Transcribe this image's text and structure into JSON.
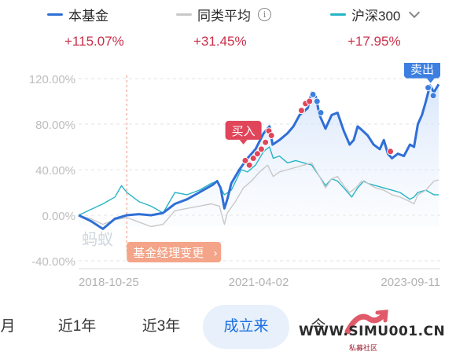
{
  "legend": [
    {
      "name": "本基金",
      "return": "+115.07%",
      "color": "#2f6fd6"
    },
    {
      "name": "同类平均",
      "return": "+31.45%",
      "color": "#c8c8c8"
    },
    {
      "name": "沪深300",
      "return": "+17.95%",
      "color": "#25b4c6"
    }
  ],
  "icons": {
    "info": "info-icon",
    "dropdown": "chevron-down-icon"
  },
  "chart_data": {
    "type": "line",
    "y_ticks": [
      "120.00%",
      "80.00%",
      "40.00%",
      "0.00%",
      "-40.00%"
    ],
    "ylim": [
      -40,
      120
    ],
    "x_tick_labels": [
      "2018-10-25",
      "2021-04-02",
      "2023-09-11"
    ],
    "x_range": [
      "2017-03-01",
      "2024-09-01"
    ],
    "grid": true,
    "series": [
      {
        "name": "本基金",
        "color": "#2f6fd6",
        "points": [
          [
            "2017-03-01",
            0
          ],
          [
            "2017-06-01",
            -5
          ],
          [
            "2017-09-01",
            -12
          ],
          [
            "2017-12-01",
            -3
          ],
          [
            "2018-03-01",
            0
          ],
          [
            "2018-06-01",
            1
          ],
          [
            "2018-09-01",
            0
          ],
          [
            "2018-12-01",
            2
          ],
          [
            "2019-03-01",
            10
          ],
          [
            "2019-06-01",
            14
          ],
          [
            "2019-09-01",
            20
          ],
          [
            "2019-11-01",
            24
          ],
          [
            "2019-12-15",
            27
          ],
          [
            "2020-01-15",
            30
          ],
          [
            "2020-02-10",
            24
          ],
          [
            "2020-03-10",
            6
          ],
          [
            "2020-04-01",
            14
          ],
          [
            "2020-05-01",
            28
          ],
          [
            "2020-07-01",
            40
          ],
          [
            "2020-09-01",
            50
          ],
          [
            "2020-11-01",
            58
          ],
          [
            "2021-01-01",
            72
          ],
          [
            "2021-02-15",
            78
          ],
          [
            "2021-03-10",
            62
          ],
          [
            "2021-05-01",
            66
          ],
          [
            "2021-07-01",
            72
          ],
          [
            "2021-08-15",
            78
          ],
          [
            "2021-10-01",
            88
          ],
          [
            "2021-12-01",
            94
          ],
          [
            "2022-01-01",
            108
          ],
          [
            "2022-02-01",
            104
          ],
          [
            "2022-03-01",
            88
          ],
          [
            "2022-04-15",
            76
          ],
          [
            "2022-06-01",
            88
          ],
          [
            "2022-07-15",
            90
          ],
          [
            "2022-09-01",
            74
          ],
          [
            "2022-10-15",
            62
          ],
          [
            "2022-11-15",
            66
          ],
          [
            "2022-12-15",
            78
          ],
          [
            "2023-01-15",
            75
          ],
          [
            "2023-03-01",
            70
          ],
          [
            "2023-04-15",
            62
          ],
          [
            "2023-06-01",
            58
          ],
          [
            "2023-07-01",
            66
          ],
          [
            "2023-08-01",
            54
          ],
          [
            "2023-09-01",
            50
          ],
          [
            "2023-10-15",
            54
          ],
          [
            "2023-12-01",
            52
          ],
          [
            "2024-01-15",
            62
          ],
          [
            "2024-02-15",
            60
          ],
          [
            "2024-03-15",
            80
          ],
          [
            "2024-04-15",
            88
          ],
          [
            "2024-05-15",
            100
          ],
          [
            "2024-06-15",
            114
          ],
          [
            "2024-07-15",
            108
          ],
          [
            "2024-08-20",
            115
          ]
        ]
      },
      {
        "name": "同类平均",
        "color": "#c8c8c8",
        "points": [
          [
            "2017-03-01",
            0
          ],
          [
            "2017-06-01",
            -3
          ],
          [
            "2017-09-01",
            -8
          ],
          [
            "2017-12-01",
            -4
          ],
          [
            "2018-03-01",
            -2
          ],
          [
            "2018-06-01",
            -6
          ],
          [
            "2018-09-01",
            -10
          ],
          [
            "2018-12-01",
            -8
          ],
          [
            "2019-03-01",
            4
          ],
          [
            "2019-06-01",
            6
          ],
          [
            "2019-09-01",
            8
          ],
          [
            "2019-12-01",
            10
          ],
          [
            "2020-02-01",
            8
          ],
          [
            "2020-03-10",
            -8
          ],
          [
            "2020-04-01",
            2
          ],
          [
            "2020-06-01",
            12
          ],
          [
            "2020-08-01",
            24
          ],
          [
            "2020-10-01",
            30
          ],
          [
            "2020-12-01",
            38
          ],
          [
            "2021-02-01",
            44
          ],
          [
            "2021-03-15",
            34
          ],
          [
            "2021-05-01",
            38
          ],
          [
            "2021-07-01",
            40
          ],
          [
            "2021-09-01",
            42
          ],
          [
            "2021-11-01",
            44
          ],
          [
            "2022-01-01",
            46
          ],
          [
            "2022-03-01",
            34
          ],
          [
            "2022-04-15",
            24
          ],
          [
            "2022-06-01",
            32
          ],
          [
            "2022-07-15",
            34
          ],
          [
            "2022-09-01",
            26
          ],
          [
            "2022-10-15",
            20
          ],
          [
            "2022-12-01",
            24
          ],
          [
            "2023-01-15",
            30
          ],
          [
            "2023-03-01",
            28
          ],
          [
            "2023-05-01",
            24
          ],
          [
            "2023-07-01",
            22
          ],
          [
            "2023-09-01",
            18
          ],
          [
            "2023-11-01",
            16
          ],
          [
            "2024-01-15",
            12
          ],
          [
            "2024-02-15",
            10
          ],
          [
            "2024-03-15",
            18
          ],
          [
            "2024-05-15",
            22
          ],
          [
            "2024-07-15",
            30
          ],
          [
            "2024-08-20",
            31
          ]
        ]
      },
      {
        "name": "沪深300",
        "color": "#25b4c6",
        "points": [
          [
            "2017-03-01",
            0
          ],
          [
            "2017-06-01",
            5
          ],
          [
            "2017-09-01",
            10
          ],
          [
            "2017-12-01",
            16
          ],
          [
            "2018-01-20",
            26
          ],
          [
            "2018-03-01",
            20
          ],
          [
            "2018-06-01",
            12
          ],
          [
            "2018-09-01",
            8
          ],
          [
            "2018-12-01",
            2
          ],
          [
            "2019-03-01",
            20
          ],
          [
            "2019-06-01",
            18
          ],
          [
            "2019-09-01",
            22
          ],
          [
            "2019-12-01",
            28
          ],
          [
            "2020-01-15",
            30
          ],
          [
            "2020-03-10",
            18
          ],
          [
            "2020-05-01",
            22
          ],
          [
            "2020-07-15",
            40
          ],
          [
            "2020-09-01",
            38
          ],
          [
            "2020-11-01",
            44
          ],
          [
            "2021-01-01",
            56
          ],
          [
            "2021-02-15",
            60
          ],
          [
            "2021-03-15",
            50
          ],
          [
            "2021-05-01",
            52
          ],
          [
            "2021-07-01",
            46
          ],
          [
            "2021-09-01",
            48
          ],
          [
            "2021-11-01",
            46
          ],
          [
            "2022-01-01",
            44
          ],
          [
            "2022-03-01",
            34
          ],
          [
            "2022-04-15",
            26
          ],
          [
            "2022-06-01",
            32
          ],
          [
            "2022-07-15",
            30
          ],
          [
            "2022-09-01",
            24
          ],
          [
            "2022-10-31",
            16
          ],
          [
            "2022-12-15",
            24
          ],
          [
            "2023-01-31",
            30
          ],
          [
            "2023-03-01",
            28
          ],
          [
            "2023-05-01",
            26
          ],
          [
            "2023-07-01",
            24
          ],
          [
            "2023-09-01",
            22
          ],
          [
            "2023-11-01",
            20
          ],
          [
            "2024-01-15",
            14
          ],
          [
            "2024-02-15",
            16
          ],
          [
            "2024-03-15",
            20
          ],
          [
            "2024-05-15",
            22
          ],
          [
            "2024-07-15",
            18
          ],
          [
            "2024-08-20",
            18
          ]
        ]
      }
    ],
    "trade_markers": [
      {
        "label": "买入",
        "x": "2020-08-01",
        "y": 58,
        "color": "#e0455a"
      },
      {
        "label": "卖出",
        "x": "2024-06-20",
        "y": 112,
        "color": "#3d7fe0"
      }
    ],
    "buy_dots": [
      [
        "2020-08-15",
        48
      ],
      [
        "2020-09-15",
        44
      ],
      [
        "2020-10-15",
        50
      ],
      [
        "2020-11-15",
        54
      ],
      [
        "2020-12-15",
        58
      ],
      [
        "2021-01-15",
        64
      ],
      [
        "2021-02-10",
        74
      ],
      [
        "2021-03-01",
        70
      ],
      [
        "2021-10-15",
        92
      ],
      [
        "2021-11-15",
        98
      ],
      [
        "2021-12-15",
        100
      ],
      [
        "2023-08-20",
        56
      ]
    ],
    "sell_dots": [
      [
        "2022-01-10",
        106
      ],
      [
        "2022-02-10",
        100
      ],
      [
        "2022-03-10",
        90
      ],
      [
        "2024-06-01",
        112
      ],
      [
        "2024-07-10",
        105
      ]
    ],
    "annotation": {
      "label": "基金经理变更",
      "x": "2018-03-01"
    },
    "watermark": "蚂蚁"
  },
  "tabs": [
    {
      "label": "月"
    },
    {
      "label": "近1年"
    },
    {
      "label": "近3年"
    },
    {
      "label": "成立来",
      "active": true
    },
    {
      "label": "今"
    }
  ],
  "watermark_site": {
    "text": "WWW.SIMU001.CN",
    "sub": "私募社区"
  }
}
